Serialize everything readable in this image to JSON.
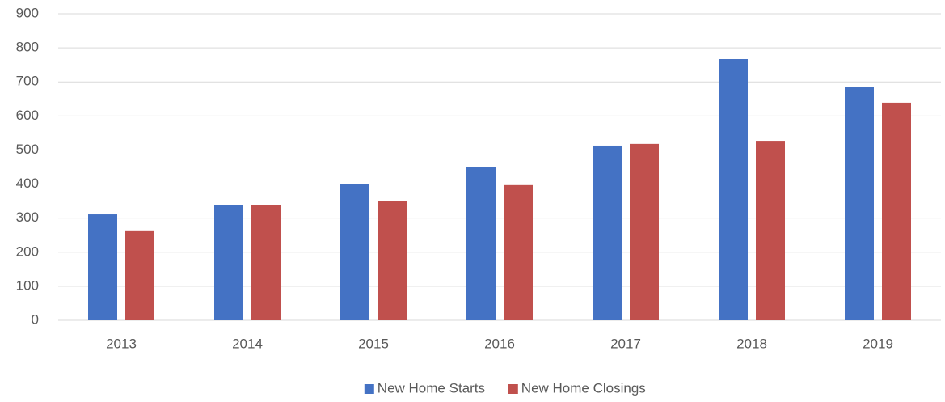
{
  "chart_data": {
    "type": "bar",
    "categories": [
      "2013",
      "2014",
      "2015",
      "2016",
      "2017",
      "2018",
      "2019"
    ],
    "series": [
      {
        "name": "New Home Starts",
        "color": "#4472c4",
        "values": [
          311,
          338,
          401,
          449,
          513,
          767,
          686
        ]
      },
      {
        "name": "New Home Closings",
        "color": "#c0504d",
        "values": [
          264,
          338,
          351,
          397,
          518,
          527,
          639
        ]
      }
    ],
    "ylim": [
      0,
      900
    ],
    "yticks": [
      0,
      100,
      200,
      300,
      400,
      500,
      600,
      700,
      800,
      900
    ],
    "grid": true,
    "legend": "bottom"
  }
}
